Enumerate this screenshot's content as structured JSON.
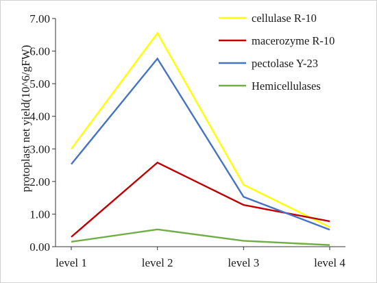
{
  "chart_data": {
    "type": "line",
    "title": "",
    "xlabel": "",
    "ylabel": "protoplast net yield(10^6/gFW)",
    "categories": [
      "level 1",
      "level 2",
      "level 3",
      "level 4"
    ],
    "ylim": [
      0,
      7
    ],
    "y_ticks": [
      "0.00",
      "1.00",
      "2.00",
      "3.00",
      "4.00",
      "5.00",
      "6.00",
      "7.00"
    ],
    "grid": false,
    "legend_position": "top-right",
    "series": [
      {
        "name": "cellulase R-10",
        "color": "#ffff00",
        "values": [
          3.0,
          6.55,
          1.9,
          0.6
        ]
      },
      {
        "name": "macerozyme R-10",
        "color": "#c00000",
        "values": [
          0.3,
          2.58,
          1.28,
          0.78
        ]
      },
      {
        "name": "pectolase Y-23",
        "color": "#4472c4",
        "values": [
          2.53,
          5.77,
          1.53,
          0.52
        ]
      },
      {
        "name": "Hemicellulases",
        "color": "#70ad47",
        "values": [
          0.15,
          0.53,
          0.18,
          0.05
        ]
      }
    ]
  }
}
